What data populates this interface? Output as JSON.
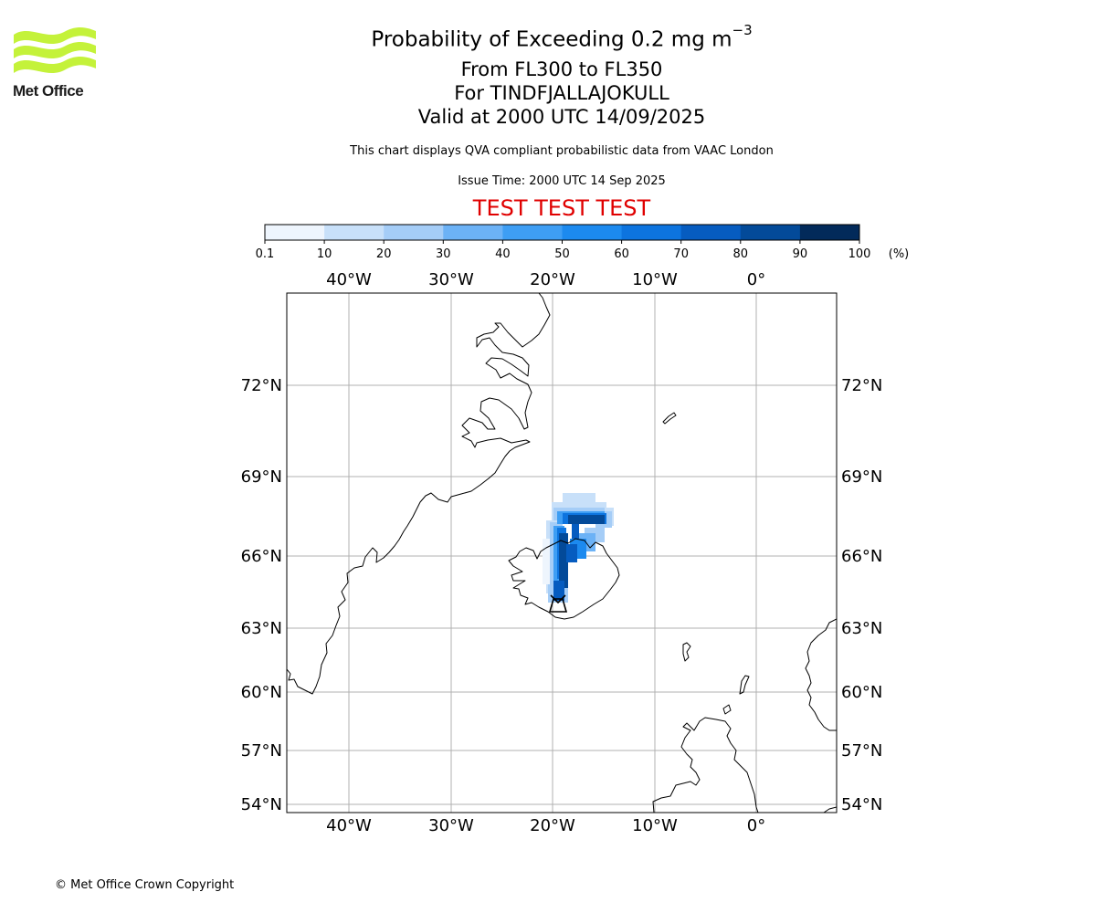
{
  "brand": {
    "logo_text": "Met Office",
    "logo_color": "#c4f23a",
    "copyright": "© Met Office Crown Copyright"
  },
  "header": {
    "title_prefix": "Probability of Exceeding 0.2 mg m",
    "title_exponent": "−3",
    "flight_levels": "From FL300 to FL350",
    "volcano": "For TINDFJALLAJOKULL",
    "valid_time": "Valid at 2000 UTC 14/09/2025",
    "description": "This chart displays QVA compliant probabilistic data from VAAC London",
    "issue_time": "Issue Time: 2000 UTC 14 Sep 2025",
    "test_banner": "TEST TEST TEST",
    "test_color": "#e00000"
  },
  "colorbar": {
    "ticks": [
      "0.1",
      "10",
      "20",
      "30",
      "40",
      "50",
      "60",
      "70",
      "80",
      "90",
      "100"
    ],
    "unit": "(%)",
    "colors": [
      "#eef5fd",
      "#c8e0f9",
      "#a5cdf7",
      "#6cb2f6",
      "#3e9ef4",
      "#1c8aef",
      "#0d74df",
      "#065cc0",
      "#034a99",
      "#022a5a"
    ]
  },
  "map": {
    "lon_ticks": [
      "40°W",
      "30°W",
      "20°W",
      "10°W",
      "0°"
    ],
    "lat_ticks": [
      "72°N",
      "69°N",
      "66°N",
      "63°N",
      "60°N",
      "57°N",
      "54°N"
    ],
    "volcano_symbol": "volcano-marker",
    "plume_levels": [
      "10-20",
      "20-30",
      "30-40",
      "40-50",
      "50-60",
      "60-70",
      "70-80",
      "80-90",
      "90-100"
    ],
    "grid": true
  }
}
